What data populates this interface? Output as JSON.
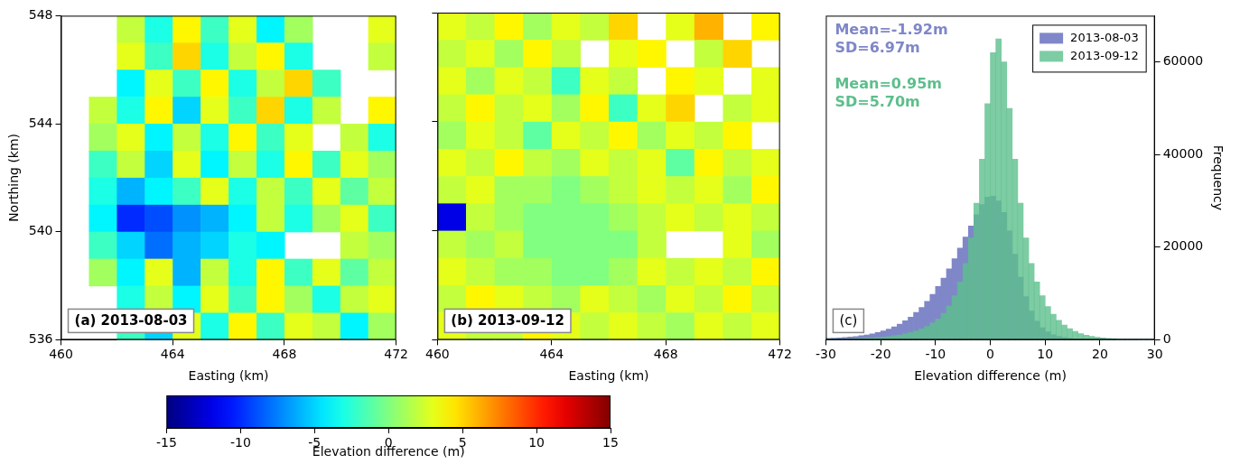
{
  "chart_data": [
    {
      "type": "heatmap",
      "title": "(a) 2013-08-03",
      "x_label": "Easting (km)",
      "y_label": "Northing (km)",
      "xlim": [
        460,
        472
      ],
      "ylim": [
        536,
        548
      ],
      "xticks": [
        460,
        464,
        468,
        472
      ],
      "yticks": [
        536,
        540,
        544,
        548
      ],
      "cells": {
        "x": [
          460.5,
          461.5,
          462.5,
          463.5,
          464.5,
          465.5,
          466.5,
          467.5,
          468.5,
          469.5,
          470.5,
          471.5
        ],
        "y": [
          547.5,
          546.5,
          545.5,
          544.5,
          543.5,
          542.5,
          541.5,
          540.5,
          539.5,
          538.5,
          537.5,
          536.5
        ],
        "z": [
          [
            null,
            null,
            2,
            -3,
            4,
            -2,
            3,
            -4,
            1,
            null,
            null,
            3
          ],
          [
            null,
            null,
            3,
            -2,
            5,
            -3,
            2,
            4,
            -3,
            null,
            null,
            2
          ],
          [
            null,
            null,
            -4,
            3,
            -2,
            4,
            -3,
            2,
            5,
            -2,
            null,
            null
          ],
          [
            null,
            2,
            -3,
            4,
            -5,
            3,
            -2,
            5,
            -3,
            2,
            null,
            4
          ],
          [
            null,
            1,
            3,
            -4,
            2,
            -3,
            4,
            -2,
            3,
            null,
            2,
            -3
          ],
          [
            null,
            -2,
            2,
            -5,
            3,
            -4,
            2,
            -3,
            4,
            -2,
            3,
            1
          ],
          [
            null,
            -3,
            -6,
            -4,
            -2,
            3,
            -3,
            2,
            -2,
            3,
            -1,
            2
          ],
          [
            null,
            -4,
            -10,
            -9,
            -7,
            -6,
            -4,
            2,
            -3,
            1,
            3,
            -2
          ],
          [
            null,
            -2,
            -5,
            -8,
            -6,
            -5,
            -3,
            -4,
            null,
            null,
            2,
            1
          ],
          [
            null,
            1,
            -4,
            3,
            -6,
            2,
            -3,
            4,
            -2,
            3,
            -1,
            2
          ],
          [
            null,
            null,
            -3,
            2,
            -4,
            3,
            -2,
            4,
            1,
            -3,
            2,
            3
          ],
          [
            null,
            null,
            -2,
            -5,
            3,
            -3,
            4,
            -2,
            3,
            2,
            -4,
            1
          ]
        ]
      }
    },
    {
      "type": "heatmap",
      "title": "(b) 2013-09-12",
      "x_label": "Easting (km)",
      "tick_labels": "x",
      "xlim": [
        460,
        472
      ],
      "ylim": [
        536,
        548
      ],
      "xticks": [
        460,
        464,
        468,
        472
      ],
      "yticks": [
        536,
        540,
        544,
        548
      ],
      "cells": {
        "x": [
          460.5,
          461.5,
          462.5,
          463.5,
          464.5,
          465.5,
          466.5,
          467.5,
          468.5,
          469.5,
          470.5,
          471.5
        ],
        "y": [
          547.5,
          546.5,
          545.5,
          544.5,
          543.5,
          542.5,
          541.5,
          540.5,
          539.5,
          538.5,
          537.5,
          536.5
        ],
        "z": [
          [
            3,
            2,
            4,
            1,
            3,
            2,
            5,
            null,
            3,
            6,
            null,
            4
          ],
          [
            2,
            3,
            1,
            4,
            2,
            null,
            3,
            4,
            null,
            2,
            5,
            null
          ],
          [
            3,
            1,
            3,
            2,
            -2,
            3,
            2,
            null,
            4,
            3,
            null,
            3
          ],
          [
            2,
            4,
            2,
            3,
            1,
            4,
            -2,
            3,
            5,
            null,
            2,
            3
          ],
          [
            1,
            3,
            2,
            -1,
            3,
            2,
            4,
            1,
            3,
            2,
            4,
            null
          ],
          [
            3,
            2,
            4,
            2,
            1,
            3,
            2,
            3,
            -1,
            4,
            2,
            3
          ],
          [
            2,
            3,
            1,
            1,
            0,
            1,
            2,
            3,
            2,
            3,
            1,
            4
          ],
          [
            -12,
            2,
            1,
            0,
            0,
            0,
            1,
            2,
            3,
            2,
            3,
            2
          ],
          [
            2,
            1,
            2,
            0,
            0,
            0,
            0,
            2,
            null,
            null,
            3,
            1
          ],
          [
            3,
            2,
            1,
            1,
            0,
            0,
            1,
            3,
            2,
            3,
            2,
            4
          ],
          [
            2,
            4,
            3,
            2,
            1,
            3,
            2,
            1,
            3,
            2,
            4,
            2
          ],
          [
            3,
            2,
            2,
            4,
            3,
            2,
            3,
            2,
            1,
            3,
            2,
            3
          ]
        ]
      }
    },
    {
      "type": "histogram",
      "title": "(c)",
      "x_label": "Elevation difference (m)",
      "y_label": "Frequency",
      "xlim": [
        -30,
        30
      ],
      "xticks": [
        -30,
        -20,
        -10,
        0,
        10,
        20,
        30
      ],
      "ylim": [
        0,
        70000
      ],
      "yticks": [
        0,
        20000,
        40000,
        60000
      ],
      "legend": "upper right",
      "bins": [
        -30,
        -29,
        -28,
        -27,
        -26,
        -25,
        -24,
        -23,
        -22,
        -21,
        -20,
        -19,
        -18,
        -17,
        -16,
        -15,
        -14,
        -13,
        -12,
        -11,
        -10,
        -9,
        -8,
        -7,
        -6,
        -5,
        -4,
        -3,
        -2,
        -1,
        0,
        1,
        2,
        3,
        4,
        5,
        6,
        7,
        8,
        9,
        10,
        11,
        12,
        13,
        14,
        15,
        16,
        17,
        18,
        19,
        20,
        21,
        22,
        23,
        24,
        25,
        26,
        27,
        28,
        29,
        30
      ],
      "series": [
        {
          "name": "2013-08-03",
          "color": "#7f87c8",
          "values": [
            300,
            350,
            420,
            500,
            600,
            720,
            870,
            1050,
            1270,
            1550,
            1900,
            2300,
            2800,
            3400,
            4100,
            4900,
            5900,
            7000,
            8300,
            9800,
            11500,
            13300,
            15300,
            17500,
            19800,
            22200,
            24600,
            27000,
            29200,
            30800,
            31000,
            30000,
            27500,
            23500,
            18500,
            13500,
            9300,
            6200,
            4000,
            2600,
            1700,
            1100,
            750,
            500,
            340,
            230,
            160,
            110,
            80,
            60,
            45,
            35,
            25,
            20,
            15,
            12,
            10,
            8,
            6,
            5
          ]
        },
        {
          "name": "2013-09-12",
          "color": "#5cbf8c",
          "values": [
            100,
            120,
            140,
            170,
            200,
            240,
            290,
            350,
            420,
            500,
            600,
            720,
            870,
            1050,
            1280,
            1560,
            1900,
            2350,
            2900,
            3600,
            4500,
            5700,
            7300,
            9500,
            12500,
            16500,
            22000,
            29500,
            39000,
            51000,
            62000,
            65000,
            60000,
            50000,
            39000,
            29500,
            22000,
            16500,
            12500,
            9500,
            7200,
            5500,
            4200,
            3200,
            2400,
            1800,
            1350,
            1000,
            750,
            560,
            420,
            320,
            240,
            180,
            140,
            110,
            80,
            60,
            45,
            35
          ]
        }
      ],
      "annotations": [
        {
          "text": "Mean=-1.92m",
          "color": "#7f87c8"
        },
        {
          "text": "SD=6.97m",
          "color": "#7f87c8"
        },
        {
          "text": "Mean=0.95m",
          "color": "#5cbf8c"
        },
        {
          "text": "SD=5.70m",
          "color": "#5cbf8c"
        }
      ]
    }
  ],
  "colorbar": {
    "range": [
      -15,
      15
    ],
    "ticks": [
      -15,
      -10,
      -5,
      0,
      5,
      10,
      15
    ],
    "label": "Elevation difference (m)"
  }
}
